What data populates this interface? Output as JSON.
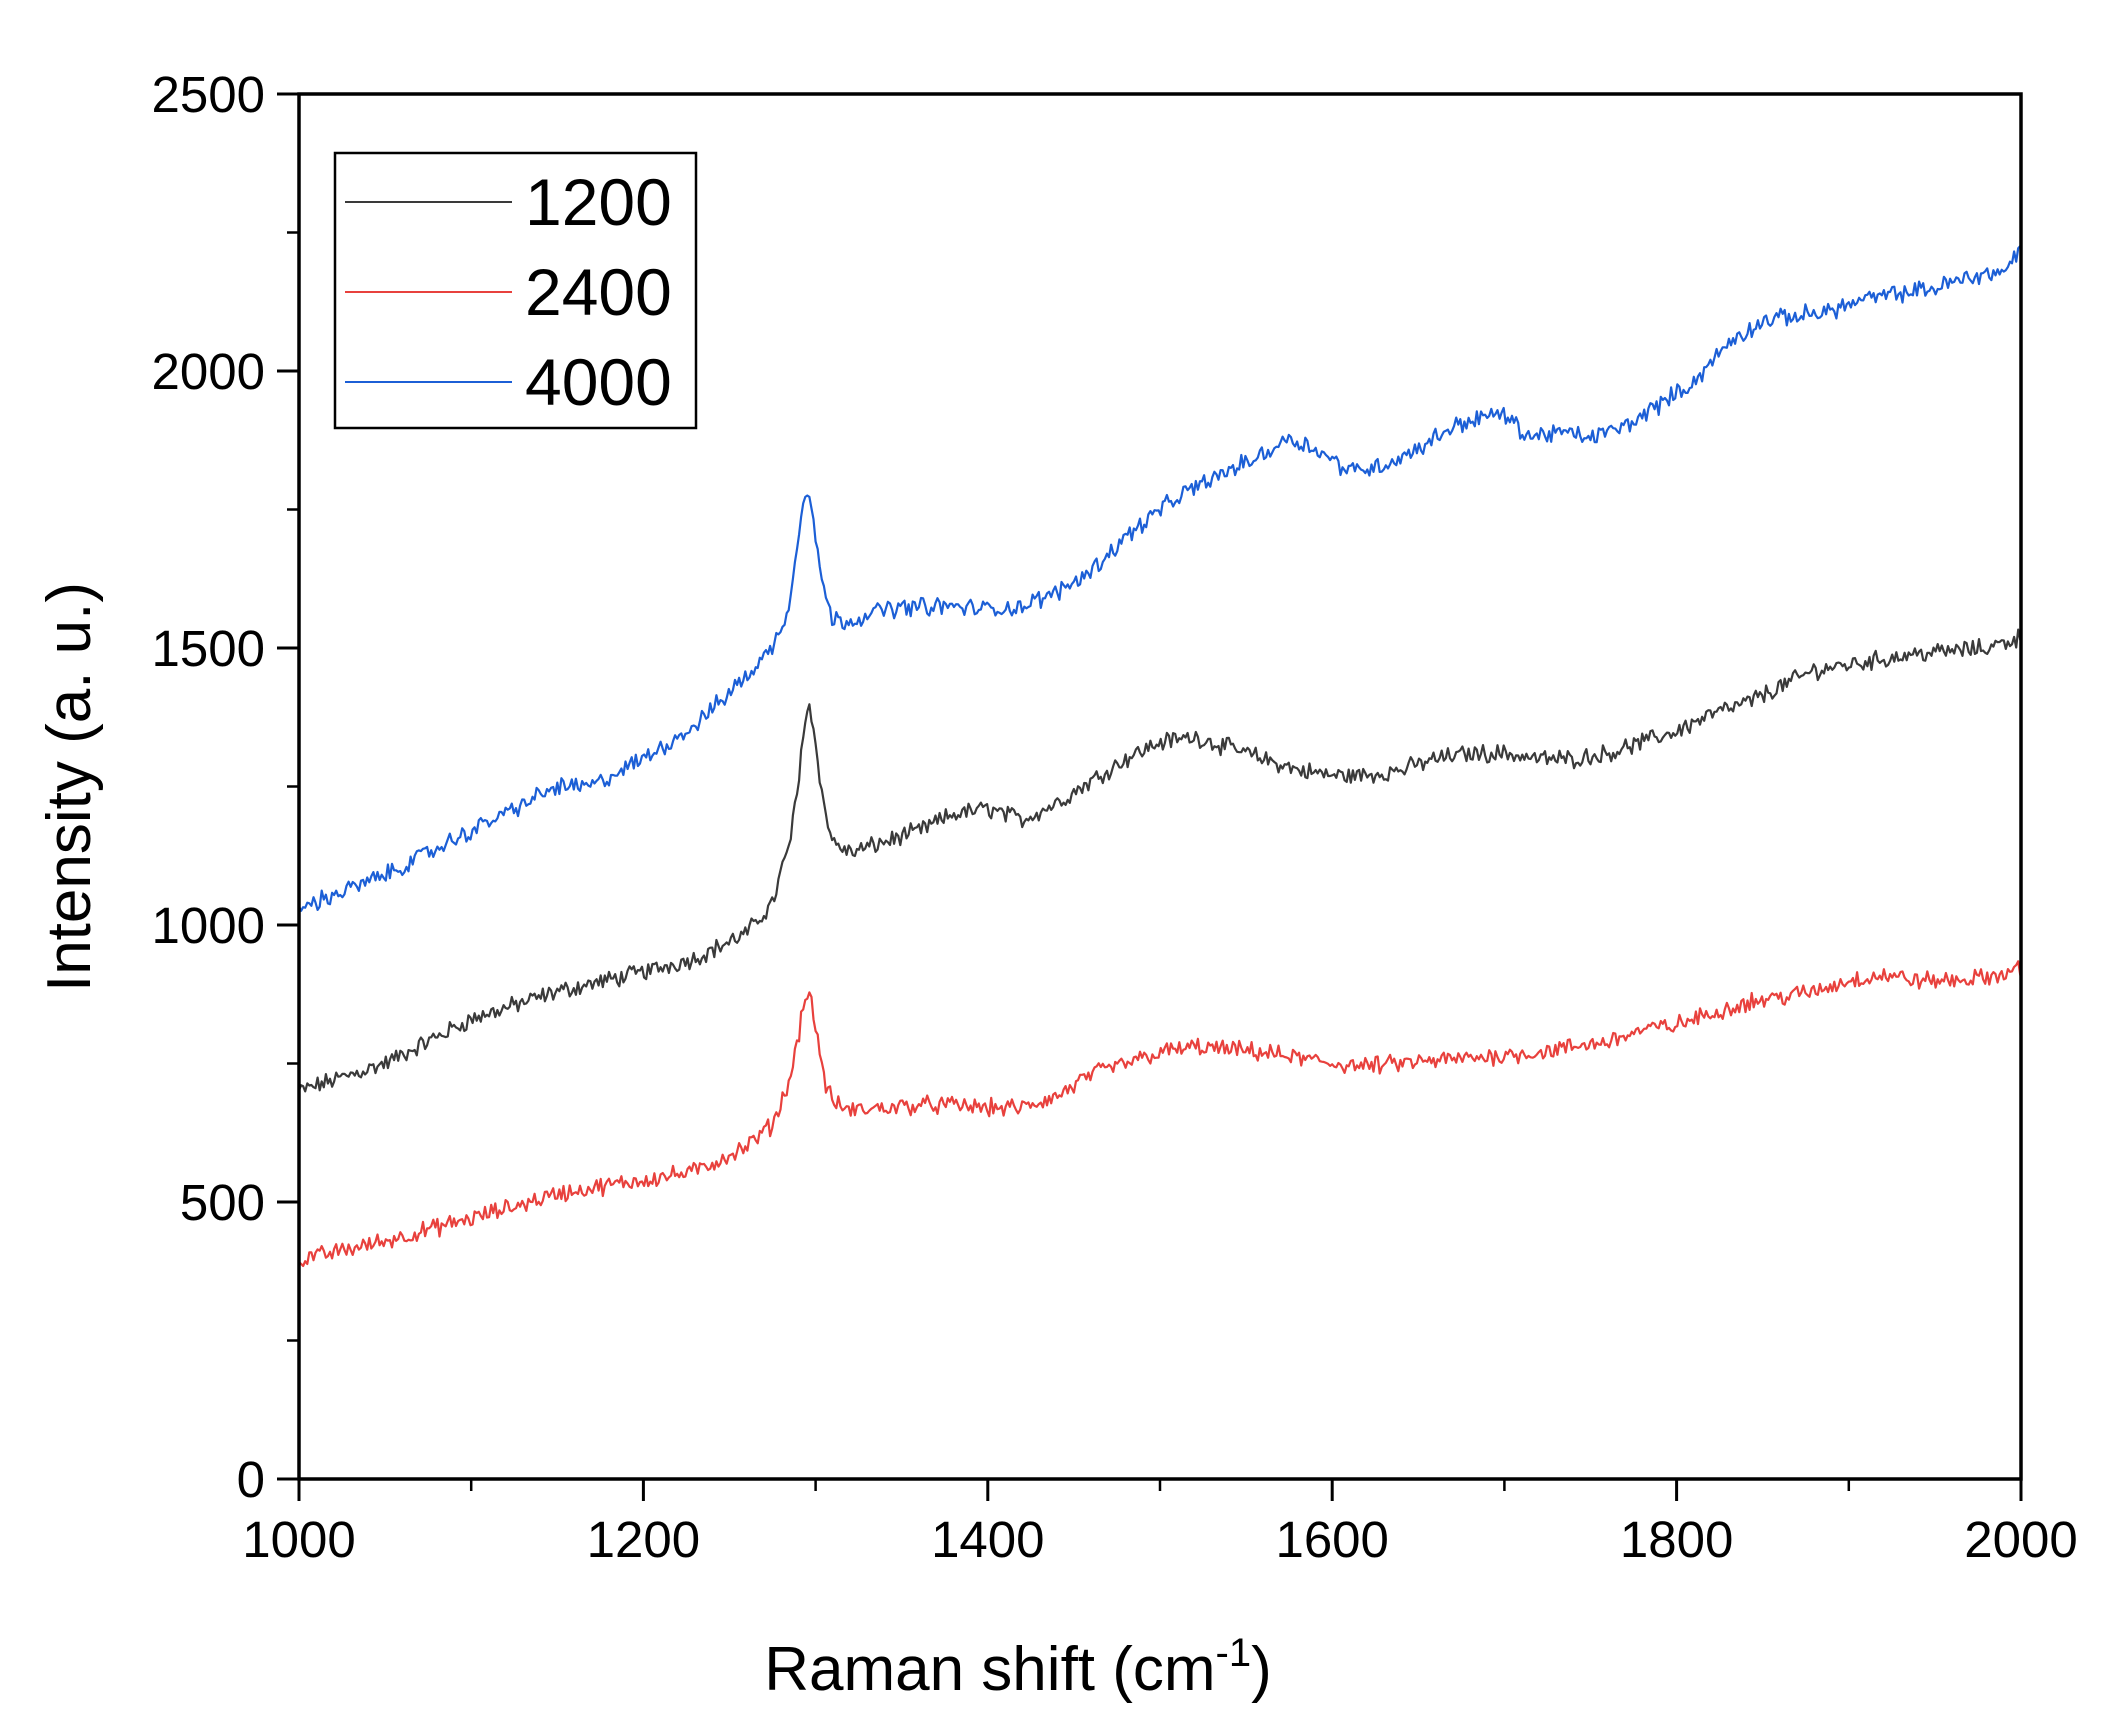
{
  "chart_data": {
    "type": "line",
    "title": "",
    "xlabel": "Raman shift (cm",
    "xlabel_sup": "-1",
    "xlabel_end": ")",
    "ylabel": "Intensity (a. u.)",
    "xlim": [
      1000,
      2000
    ],
    "ylim": [
      0,
      2500
    ],
    "x_ticks": [
      1000,
      1200,
      1400,
      1600,
      1800,
      2000
    ],
    "x_tick_labels": [
      "1000",
      "1200",
      "1400",
      "1600",
      "1800",
      "2000"
    ],
    "y_ticks": [
      0,
      500,
      1000,
      1500,
      2000,
      2500
    ],
    "y_tick_labels": [
      "0",
      "500",
      "1000",
      "1500",
      "2000",
      "2500"
    ],
    "grid": false,
    "legend_position": "top-left",
    "series": [
      {
        "name": "1200",
        "color": "#3a3a3a",
        "x": [
          1000,
          1050,
          1100,
          1150,
          1200,
          1230,
          1260,
          1275,
          1285,
          1290,
          1293,
          1296,
          1300,
          1305,
          1310,
          1320,
          1340,
          1360,
          1380,
          1400,
          1420,
          1440,
          1460,
          1480,
          1500,
          1520,
          1540,
          1560,
          1580,
          1600,
          1620,
          1640,
          1660,
          1680,
          1700,
          1720,
          1740,
          1760,
          1780,
          1800,
          1820,
          1840,
          1860,
          1880,
          1900,
          1920,
          1940,
          1960,
          1980,
          2000
        ],
        "y": [
          700,
          750,
          830,
          880,
          915,
          940,
          985,
          1040,
          1150,
          1250,
          1360,
          1400,
          1330,
          1210,
          1150,
          1130,
          1150,
          1170,
          1200,
          1210,
          1190,
          1220,
          1260,
          1300,
          1330,
          1340,
          1320,
          1300,
          1280,
          1270,
          1270,
          1280,
          1300,
          1310,
          1310,
          1300,
          1300,
          1310,
          1330,
          1350,
          1380,
          1400,
          1430,
          1460,
          1470,
          1480,
          1490,
          1495,
          1500,
          1520
        ]
      },
      {
        "name": "2400",
        "color": "#e8413d",
        "x": [
          1000,
          1050,
          1100,
          1150,
          1200,
          1230,
          1260,
          1275,
          1285,
          1290,
          1293,
          1296,
          1300,
          1305,
          1310,
          1320,
          1340,
          1360,
          1380,
          1400,
          1420,
          1440,
          1460,
          1480,
          1500,
          1520,
          1540,
          1560,
          1580,
          1600,
          1620,
          1640,
          1660,
          1680,
          1700,
          1720,
          1740,
          1760,
          1780,
          1800,
          1820,
          1840,
          1860,
          1880,
          1900,
          1920,
          1940,
          1960,
          1980,
          2000
        ],
        "y": [
          395,
          430,
          470,
          515,
          540,
          555,
          600,
          640,
          720,
          800,
          860,
          880,
          820,
          720,
          680,
          665,
          670,
          675,
          675,
          670,
          670,
          690,
          730,
          750,
          770,
          780,
          775,
          770,
          760,
          750,
          745,
          750,
          755,
          760,
          765,
          770,
          780,
          790,
          810,
          820,
          840,
          860,
          870,
          880,
          900,
          910,
          900,
          900,
          905,
          920
        ]
      },
      {
        "name": "4000",
        "color": "#1c5fd6",
        "x": [
          1000,
          1050,
          1100,
          1150,
          1170,
          1200,
          1230,
          1260,
          1275,
          1285,
          1290,
          1293,
          1296,
          1300,
          1305,
          1310,
          1320,
          1340,
          1360,
          1380,
          1400,
          1420,
          1440,
          1460,
          1480,
          1500,
          1520,
          1540,
          1560,
          1575,
          1590,
          1610,
          1630,
          1650,
          1670,
          1690,
          1700,
          1715,
          1730,
          1750,
          1770,
          1790,
          1810,
          1830,
          1850,
          1870,
          1890,
          1910,
          1930,
          1950,
          1970,
          1990,
          2000
        ],
        "y": [
          1030,
          1090,
          1170,
          1250,
          1250,
          1300,
          1360,
          1450,
          1500,
          1580,
          1700,
          1780,
          1790,
          1700,
          1600,
          1550,
          1550,
          1570,
          1575,
          1575,
          1570,
          1575,
          1600,
          1640,
          1700,
          1750,
          1790,
          1820,
          1850,
          1880,
          1860,
          1820,
          1830,
          1860,
          1900,
          1920,
          1920,
          1880,
          1890,
          1880,
          1900,
          1940,
          1980,
          2050,
          2090,
          2100,
          2110,
          2130,
          2140,
          2150,
          2170,
          2180,
          2220
        ]
      }
    ]
  }
}
